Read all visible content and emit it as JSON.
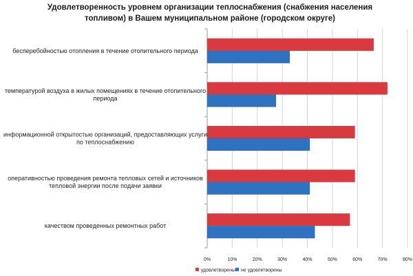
{
  "chart_data": {
    "type": "bar",
    "orientation": "horizontal",
    "title": "Удовлетворенность уровнем организации теплоснабжения (снабжения населения топливом) в Вашем муниципальном районе (городском округе)",
    "categories": [
      "бесперебойностью отопления в течение отопительного периода",
      "температурой воздуха в жилых помещениях в течение отопительного периода",
      "информационной открытостью организаций, предоставляющих услуги по теплоснабжению",
      "оперативностью проведения ремонта тепловых сетей и источников тепловой энергии после подачи заявки",
      "качеством проведенных ремонтных работ"
    ],
    "category_lines": [
      [
        "бесперебойностью отопления в течение отопительного периода"
      ],
      [
        "температурой воздуха в жилых помещениях в течение отопительного",
        "периода"
      ],
      [
        "информационной открытостью организаций, предоставляющих услуги",
        "по теплоснабжению"
      ],
      [
        "оперативностью проведения ремонта тепловых сетей и источников",
        "тепловой энергии после подачи заявки"
      ],
      [
        "качеством проведенных ремонтных работ"
      ]
    ],
    "series": [
      {
        "name": "удовлетворены",
        "color": "#d93a3f",
        "values": [
          66.5,
          72,
          59,
          59,
          57
        ]
      },
      {
        "name": "не удовлетворены",
        "color": "#2f72c2",
        "values": [
          33,
          27.5,
          41,
          41,
          43
        ]
      }
    ],
    "xlim": [
      0,
      80
    ],
    "xticks": [
      "0%",
      "10%",
      "20%",
      "30%",
      "40%",
      "50%",
      "60%",
      "70%",
      "80%"
    ],
    "grid": true,
    "legend_position": "bottom"
  }
}
